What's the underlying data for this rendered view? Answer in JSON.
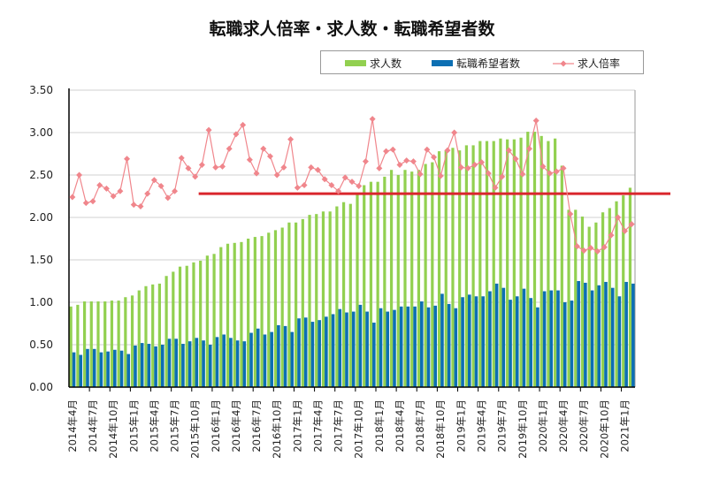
{
  "chart_data": {
    "type": "bar+line",
    "title": "転職求人倍率・求人数・転職希望者数",
    "xlabel": "",
    "ylabel": "",
    "ylim": [
      0,
      3.5
    ],
    "yticks": [
      "0.00",
      "0.50",
      "1.00",
      "1.50",
      "2.00",
      "2.50",
      "3.00",
      "3.50"
    ],
    "grid": true,
    "legend_position": "top-right",
    "start": {
      "year": 2014,
      "month": 4
    },
    "month_count": 83,
    "tick_every": 3,
    "year_suffix": "年",
    "month_suffix": "月",
    "categories_labeled": [
      "2014年4月",
      "2014年7月",
      "2014年10月",
      "2015年1月",
      "2015年4月",
      "2015年7月",
      "2015年10月",
      "2016年1月",
      "2016年4月",
      "2016年7月",
      "2016年10月",
      "2017年1月",
      "2017年4月",
      "2017年7月",
      "2017年10月",
      "2018年1月",
      "2018年4月",
      "2018年7月",
      "2018年10月",
      "2019年1月",
      "2019年4月",
      "2019年7月",
      "2019年10月",
      "2020年1月",
      "2020年4月",
      "2020年7月",
      "2020年10月",
      "2021年1月"
    ],
    "series": [
      {
        "name": "求人数",
        "type": "bar",
        "color": "#92d050",
        "values": [
          0.95,
          0.97,
          1.01,
          1.01,
          1.01,
          1.01,
          1.02,
          1.02,
          1.06,
          1.08,
          1.14,
          1.19,
          1.21,
          1.22,
          1.31,
          1.36,
          1.42,
          1.43,
          1.47,
          1.49,
          1.55,
          1.57,
          1.65,
          1.69,
          1.7,
          1.71,
          1.75,
          1.77,
          1.78,
          1.82,
          1.85,
          1.88,
          1.94,
          1.94,
          1.98,
          2.03,
          2.04,
          2.07,
          2.07,
          2.13,
          2.18,
          2.16,
          2.29,
          2.38,
          2.42,
          2.42,
          2.48,
          2.56,
          2.5,
          2.56,
          2.54,
          2.56,
          2.63,
          2.65,
          2.78,
          2.79,
          2.82,
          2.79,
          2.85,
          2.85,
          2.9,
          2.9,
          2.9,
          2.93,
          2.92,
          2.92,
          2.94,
          3.01,
          3.01,
          2.96,
          2.9,
          2.93,
          2.61,
          2.09,
          2.09,
          2.01,
          1.89,
          1.94,
          2.06,
          2.11,
          2.19,
          2.26,
          2.35
        ]
      },
      {
        "name": "転職希望者数",
        "type": "bar",
        "color": "#0c6fb3",
        "values": [
          0.41,
          0.38,
          0.45,
          0.45,
          0.41,
          0.42,
          0.44,
          0.43,
          0.39,
          0.49,
          0.52,
          0.51,
          0.48,
          0.5,
          0.57,
          0.57,
          0.51,
          0.54,
          0.58,
          0.55,
          0.5,
          0.59,
          0.62,
          0.58,
          0.55,
          0.54,
          0.64,
          0.69,
          0.62,
          0.65,
          0.73,
          0.72,
          0.65,
          0.81,
          0.82,
          0.77,
          0.79,
          0.83,
          0.86,
          0.92,
          0.88,
          0.89,
          0.97,
          0.89,
          0.76,
          0.93,
          0.89,
          0.91,
          0.95,
          0.95,
          0.95,
          1.01,
          0.94,
          0.96,
          1.1,
          0.98,
          0.93,
          1.06,
          1.09,
          1.07,
          1.07,
          1.13,
          1.22,
          1.17,
          1.03,
          1.07,
          1.16,
          1.05,
          0.94,
          1.13,
          1.14,
          1.14,
          1.0,
          1.02,
          1.25,
          1.23,
          1.14,
          1.2,
          1.24,
          1.17,
          1.07,
          1.24,
          1.22
        ]
      },
      {
        "name": "求人倍率",
        "type": "line",
        "color": "#f0868c",
        "values": [
          2.24,
          2.5,
          2.17,
          2.19,
          2.38,
          2.34,
          2.25,
          2.31,
          2.69,
          2.15,
          2.13,
          2.28,
          2.44,
          2.37,
          2.23,
          2.31,
          2.7,
          2.58,
          2.48,
          2.62,
          3.03,
          2.59,
          2.6,
          2.81,
          2.98,
          3.09,
          2.68,
          2.52,
          2.81,
          2.72,
          2.5,
          2.59,
          2.92,
          2.35,
          2.38,
          2.59,
          2.56,
          2.45,
          2.38,
          2.31,
          2.47,
          2.42,
          2.37,
          2.66,
          3.16,
          2.58,
          2.78,
          2.8,
          2.62,
          2.67,
          2.66,
          2.51,
          2.8,
          2.71,
          2.49,
          2.79,
          3.0,
          2.59,
          2.58,
          2.62,
          2.65,
          2.52,
          2.35,
          2.48,
          2.79,
          2.69,
          2.51,
          2.81,
          3.14,
          2.6,
          2.52,
          2.54,
          2.58,
          2.04,
          1.66,
          1.61,
          1.64,
          1.6,
          1.65,
          1.79,
          2.0,
          1.84,
          1.92
        ]
      }
    ],
    "annotations": [
      {
        "type": "hline",
        "value": 2.28,
        "from_category": "2015年10月",
        "color": "#d9262c"
      }
    ]
  }
}
